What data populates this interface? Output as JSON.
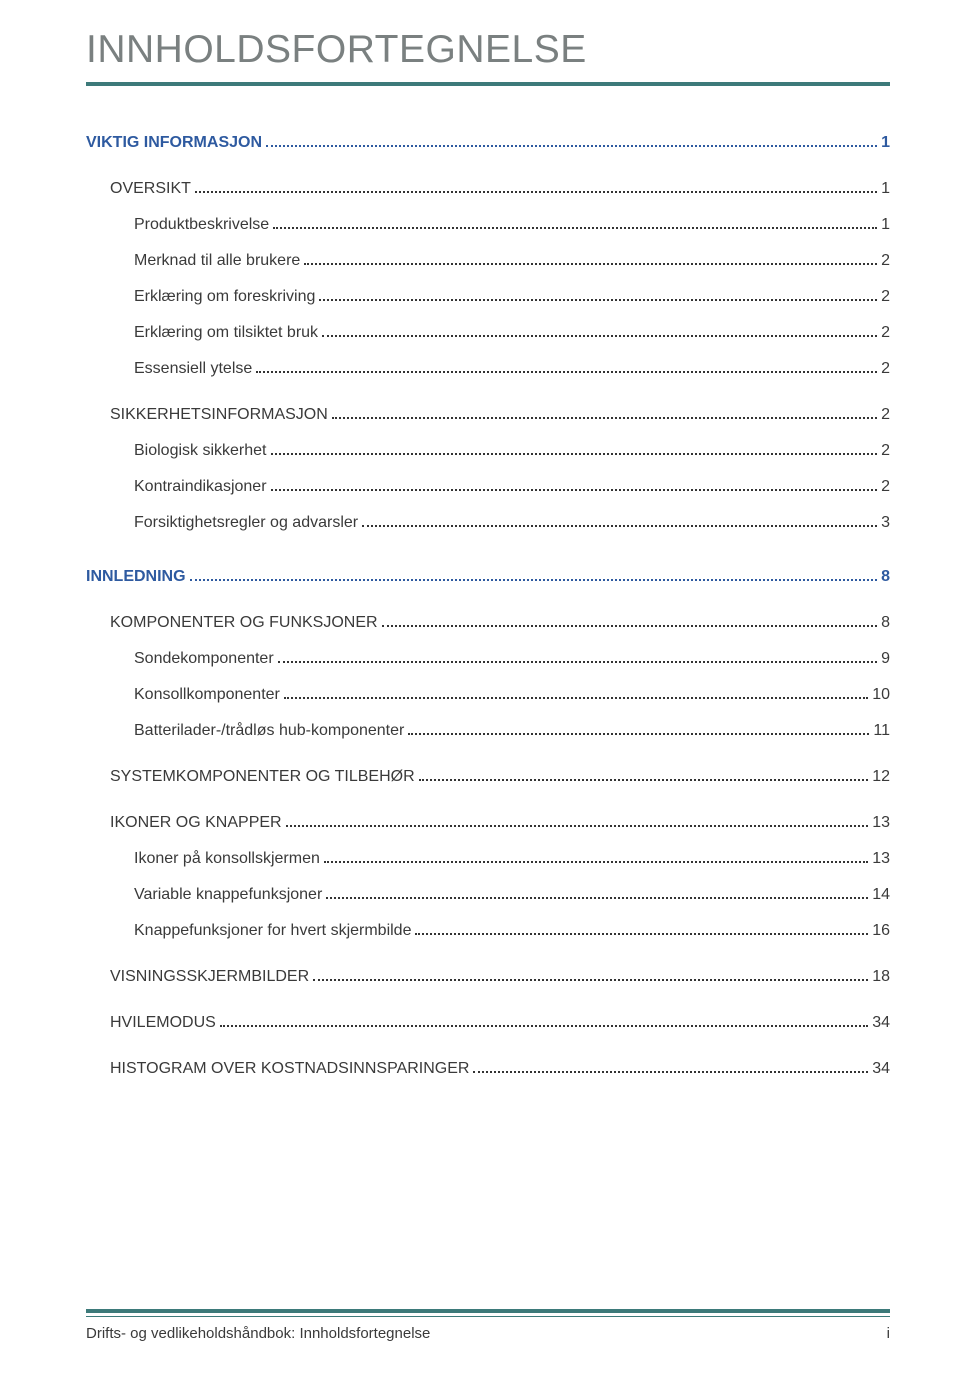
{
  "title": "INNHOLDSFORTEGNELSE",
  "colors": {
    "title_text": "#7a8080",
    "rule": "#3d7a7a",
    "section_text": "#2e5aa0",
    "body_text": "#3a3a3a",
    "background": "#ffffff"
  },
  "typography": {
    "title_fontsize_pt": 29,
    "body_fontsize_pt": 12,
    "title_weight": "400",
    "section_weight": "700"
  },
  "toc": [
    {
      "label": "VIKTIG INFORMASJON",
      "page": "1",
      "level": 0,
      "style": "section"
    },
    {
      "label": "OVERSIKT",
      "page": "1",
      "level": 1,
      "style": "sub-upper"
    },
    {
      "label": "Produktbeskrivelse",
      "page": "1",
      "level": 2,
      "style": "sub-normal"
    },
    {
      "label": "Merknad til alle brukere",
      "page": "2",
      "level": 2,
      "style": "sub-normal"
    },
    {
      "label": "Erklæring om foreskriving",
      "page": "2",
      "level": 2,
      "style": "sub-normal"
    },
    {
      "label": "Erklæring om tilsiktet bruk",
      "page": "2",
      "level": 2,
      "style": "sub-normal"
    },
    {
      "label": "Essensiell ytelse",
      "page": "2",
      "level": 2,
      "style": "sub-normal"
    },
    {
      "label": "SIKKERHETSINFORMASJON",
      "page": "2",
      "level": 1,
      "style": "sub-upper"
    },
    {
      "label": "Biologisk sikkerhet",
      "page": "2",
      "level": 2,
      "style": "sub-normal"
    },
    {
      "label": "Kontraindikasjoner",
      "page": "2",
      "level": 2,
      "style": "sub-normal"
    },
    {
      "label": "Forsiktighetsregler og advarsler",
      "page": "3",
      "level": 2,
      "style": "sub-normal"
    },
    {
      "label": "INNLEDNING",
      "page": "8",
      "level": 0,
      "style": "section"
    },
    {
      "label": "KOMPONENTER OG FUNKSJONER",
      "page": "8",
      "level": 1,
      "style": "sub-upper"
    },
    {
      "label": "Sondekomponenter",
      "page": "9",
      "level": 2,
      "style": "sub-normal"
    },
    {
      "label": "Konsollkomponenter",
      "page": "10",
      "level": 2,
      "style": "sub-normal"
    },
    {
      "label": "Batterilader-/trådløs hub-komponenter",
      "page": "11",
      "level": 2,
      "style": "sub-normal"
    },
    {
      "label": "SYSTEMKOMPONENTER OG TILBEHØR",
      "page": "12",
      "level": 1,
      "style": "sub-upper"
    },
    {
      "label": "IKONER OG KNAPPER",
      "page": "13",
      "level": 1,
      "style": "sub-upper"
    },
    {
      "label": "Ikoner på konsollskjermen",
      "page": "13",
      "level": 2,
      "style": "sub-normal"
    },
    {
      "label": "Variable knappefunksjoner",
      "page": "14",
      "level": 2,
      "style": "sub-normal"
    },
    {
      "label": "Knappefunksjoner for hvert skjermbilde",
      "page": "16",
      "level": 2,
      "style": "sub-normal"
    },
    {
      "label": "VISNINGSSKJERMBILDER",
      "page": "18",
      "level": 1,
      "style": "sub-upper"
    },
    {
      "label": "HVILEMODUS",
      "page": "34",
      "level": 1,
      "style": "sub-upper"
    },
    {
      "label": "HISTOGRAM OVER KOSTNADSINNSPARINGER",
      "page": "34",
      "level": 1,
      "style": "sub-upper"
    }
  ],
  "footer": {
    "text": "Drifts- og vedlikeholdshåndbok: Innholdsfortegnelse",
    "page_number": "i"
  }
}
